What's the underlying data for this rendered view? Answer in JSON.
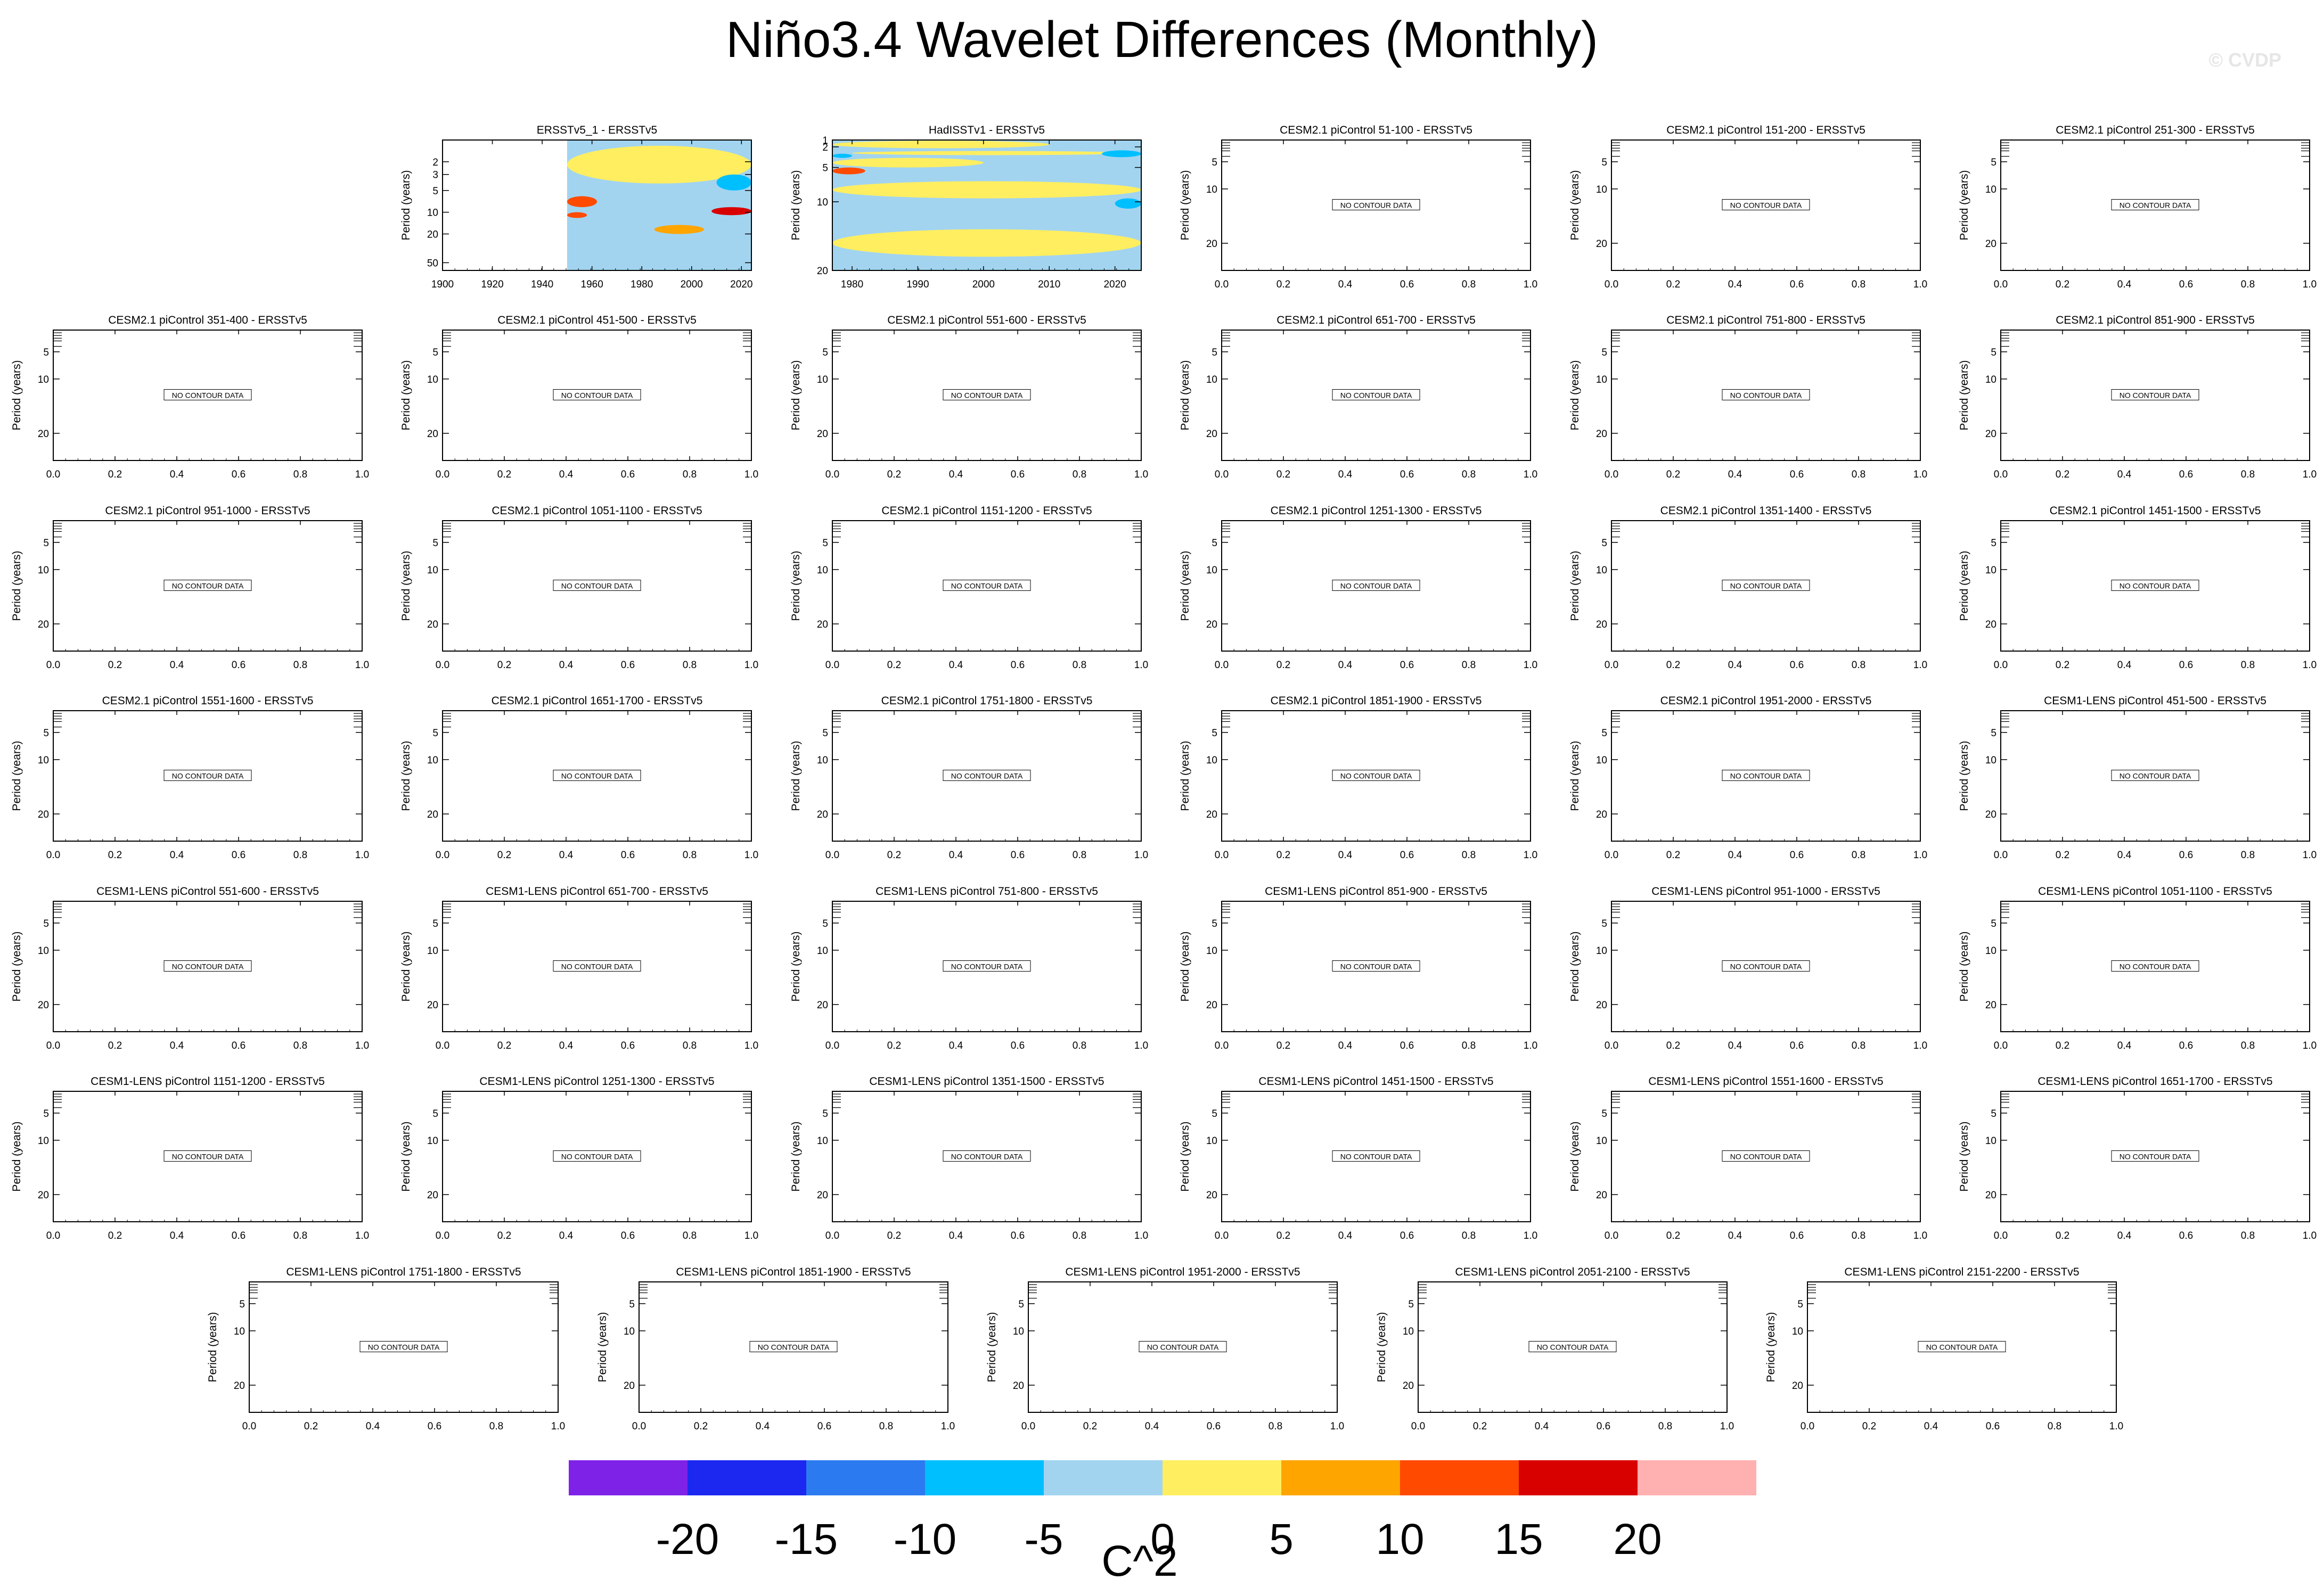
{
  "page_title": "Niño3.4 Wavelet Differences (Monthly)",
  "watermark": "© CVDP",
  "y_axis_label": "Period (years)",
  "no_data_text": "NO CONTOUR DATA",
  "colors": {
    "-25": "#7f22e8",
    "-20": "#1c28f0",
    "-15": "#2c7af0",
    "-10": "#00bfff",
    "-5": "#a2d4f0",
    "0": "#ffee60",
    "5": "#ffa500",
    "10": "#ff4a00",
    "15": "#d90000",
    "20": "#ffb0b0"
  },
  "chart_data": {
    "type": "heatmap",
    "title": "Niño3.4 Wavelet Differences (Monthly)",
    "colorbar": {
      "levels": [
        -20,
        -15,
        -10,
        -5,
        0,
        5,
        10,
        15,
        20
      ],
      "labels": [
        "-20",
        "-15",
        "-10",
        "-5",
        "0",
        "5",
        "10",
        "15",
        "20"
      ],
      "colors": [
        "#7f22e8",
        "#1c28f0",
        "#2c7af0",
        "#00bfff",
        "#a2d4f0",
        "#ffee60",
        "#ffa500",
        "#ff4a00",
        "#d90000",
        "#ffb0b0"
      ],
      "units": "C^2"
    },
    "panels": [
      {
        "title": "ERSSTv5_1 - ERSSTv5",
        "has_data": true,
        "xlim": [
          1900,
          2024
        ],
        "xticks": [
          "1900",
          "1920",
          "1940",
          "1960",
          "1980",
          "2000",
          "2020"
        ],
        "xtick_vals": [
          1900,
          1920,
          1940,
          1960,
          1980,
          2000,
          2020
        ],
        "ylim": [
          1,
          64
        ],
        "yticks": [
          "2",
          "3",
          "5",
          "10",
          "20",
          "50"
        ],
        "ytick_vals": [
          2,
          3,
          5,
          10,
          20,
          50
        ],
        "data_start": 1950,
        "bands": [
          {
            "x0": 1950,
            "x1": 2024,
            "p0": 1.2,
            "p1": 4.0,
            "level": 0
          },
          {
            "x0": 1950,
            "x1": 1962,
            "p0": 6.0,
            "p1": 8.5,
            "level": 10
          },
          {
            "x0": 1950,
            "x1": 1960,
            "p0": 4.0,
            "p1": 6.0,
            "level": -5
          },
          {
            "x0": 1950,
            "x1": 1958,
            "p0": 10.0,
            "p1": 12.0,
            "level": 10
          },
          {
            "x0": 2008,
            "x1": 2024,
            "p0": 8.5,
            "p1": 11.0,
            "level": 15
          },
          {
            "x0": 2010,
            "x1": 2024,
            "p0": 3.0,
            "p1": 5.0,
            "level": -10
          },
          {
            "x0": 1985,
            "x1": 2005,
            "p0": 15.0,
            "p1": 20.0,
            "level": 5
          }
        ]
      },
      {
        "title": "HadISSTv1 - ERSSTv5",
        "has_data": true,
        "xlim": [
          1977,
          2024
        ],
        "xticks": [
          "1980",
          "1990",
          "2000",
          "2010",
          "2020"
        ],
        "xtick_vals": [
          1980,
          1990,
          2000,
          2010,
          2020
        ],
        "ylim": [
          1,
          20
        ],
        "yticks": [
          "1",
          "2",
          "5",
          "10",
          "20"
        ],
        "ytick_vals": [
          1,
          2,
          5,
          10,
          20
        ],
        "data_start": 1977,
        "bands": [
          {
            "x0": 1977,
            "x1": 2010,
            "p0": 1.1,
            "p1": 2.2,
            "level": 0
          },
          {
            "x0": 1980,
            "x1": 2022,
            "p0": 2.6,
            "p1": 3.2,
            "level": 0
          },
          {
            "x0": 1977,
            "x1": 2000,
            "p0": 3.6,
            "p1": 5.0,
            "level": 0
          },
          {
            "x0": 1977,
            "x1": 2024,
            "p0": 7.0,
            "p1": 9.5,
            "level": 0
          },
          {
            "x0": 1977,
            "x1": 2024,
            "p0": 14.0,
            "p1": 18.0,
            "level": 0
          },
          {
            "x0": 1977,
            "x1": 1982,
            "p0": 5.0,
            "p1": 6.0,
            "level": 10
          },
          {
            "x0": 1977,
            "x1": 1980,
            "p0": 3.0,
            "p1": 3.6,
            "level": -10
          },
          {
            "x0": 2018,
            "x1": 2024,
            "p0": 2.5,
            "p1": 3.5,
            "level": -10
          },
          {
            "x0": 2020,
            "x1": 2024,
            "p0": 9.5,
            "p1": 11.0,
            "level": -10
          }
        ]
      },
      {
        "title": "CESM2.1 piControl 51-100 - ERSSTv5",
        "has_data": false
      },
      {
        "title": "CESM2.1 piControl 151-200 - ERSSTv5",
        "has_data": false
      },
      {
        "title": "CESM2.1 piControl 251-300 - ERSSTv5",
        "has_data": false
      },
      {
        "title": "CESM2.1 piControl 351-400 - ERSSTv5",
        "has_data": false
      },
      {
        "title": "CESM2.1 piControl 451-500 - ERSSTv5",
        "has_data": false
      },
      {
        "title": "CESM2.1 piControl 551-600 - ERSSTv5",
        "has_data": false
      },
      {
        "title": "CESM2.1 piControl 651-700 - ERSSTv5",
        "has_data": false
      },
      {
        "title": "CESM2.1 piControl 751-800 - ERSSTv5",
        "has_data": false
      },
      {
        "title": "CESM2.1 piControl 851-900 - ERSSTv5",
        "has_data": false
      },
      {
        "title": "CESM2.1 piControl 951-1000 - ERSSTv5",
        "has_data": false
      },
      {
        "title": "CESM2.1 piControl 1051-1100 - ERSSTv5",
        "has_data": false
      },
      {
        "title": "CESM2.1 piControl 1151-1200 - ERSSTv5",
        "has_data": false
      },
      {
        "title": "CESM2.1 piControl 1251-1300 - ERSSTv5",
        "has_data": false
      },
      {
        "title": "CESM2.1 piControl 1351-1400 - ERSSTv5",
        "has_data": false
      },
      {
        "title": "CESM2.1 piControl 1451-1500 - ERSSTv5",
        "has_data": false
      },
      {
        "title": "CESM2.1 piControl 1551-1600 - ERSSTv5",
        "has_data": false
      },
      {
        "title": "CESM2.1 piControl 1651-1700 - ERSSTv5",
        "has_data": false
      },
      {
        "title": "CESM2.1 piControl 1751-1800 - ERSSTv5",
        "has_data": false
      },
      {
        "title": "CESM2.1 piControl 1851-1900 - ERSSTv5",
        "has_data": false
      },
      {
        "title": "CESM2.1 piControl 1951-2000 - ERSSTv5",
        "has_data": false
      },
      {
        "title": "CESM1-LENS piControl 451-500 - ERSSTv5",
        "has_data": false
      },
      {
        "title": "CESM1-LENS piControl 551-600 - ERSSTv5",
        "has_data": false
      },
      {
        "title": "CESM1-LENS piControl 651-700 - ERSSTv5",
        "has_data": false
      },
      {
        "title": "CESM1-LENS piControl 751-800 - ERSSTv5",
        "has_data": false
      },
      {
        "title": "CESM1-LENS piControl 851-900 - ERSSTv5",
        "has_data": false
      },
      {
        "title": "CESM1-LENS piControl 951-1000 - ERSSTv5",
        "has_data": false
      },
      {
        "title": "CESM1-LENS piControl 1051-1100 - ERSSTv5",
        "has_data": false
      },
      {
        "title": "CESM1-LENS piControl 1151-1200 - ERSSTv5",
        "has_data": false
      },
      {
        "title": "CESM1-LENS piControl 1251-1300 - ERSSTv5",
        "has_data": false
      },
      {
        "title": "CESM1-LENS piControl 1351-1500 - ERSSTv5",
        "has_data": false
      },
      {
        "title": "CESM1-LENS piControl 1451-1500 - ERSSTv5",
        "has_data": false
      },
      {
        "title": "CESM1-LENS piControl 1551-1600 - ERSSTv5",
        "has_data": false
      },
      {
        "title": "CESM1-LENS piControl 1651-1700 - ERSSTv5",
        "has_data": false
      },
      {
        "title": "CESM1-LENS piControl 1751-1800 - ERSSTv5",
        "has_data": false
      },
      {
        "title": "CESM1-LENS piControl 1851-1900 - ERSSTv5",
        "has_data": false
      },
      {
        "title": "CESM1-LENS piControl 1951-2000 - ERSSTv5",
        "has_data": false
      },
      {
        "title": "CESM1-LENS piControl 2051-2100 - ERSSTv5",
        "has_data": false
      },
      {
        "title": "CESM1-LENS piControl 2151-2200 - ERSSTv5",
        "has_data": false
      }
    ],
    "empty_axes": {
      "xlim": [
        0,
        1
      ],
      "xticks": [
        "0.0",
        "0.2",
        "0.4",
        "0.6",
        "0.8",
        "1.0"
      ],
      "xtick_vals": [
        0,
        0.2,
        0.4,
        0.6,
        0.8,
        1.0
      ],
      "ylim": [
        1,
        25
      ],
      "yticks": [
        "5",
        "10",
        "20"
      ],
      "ytick_vals": [
        5,
        10,
        20
      ]
    }
  }
}
